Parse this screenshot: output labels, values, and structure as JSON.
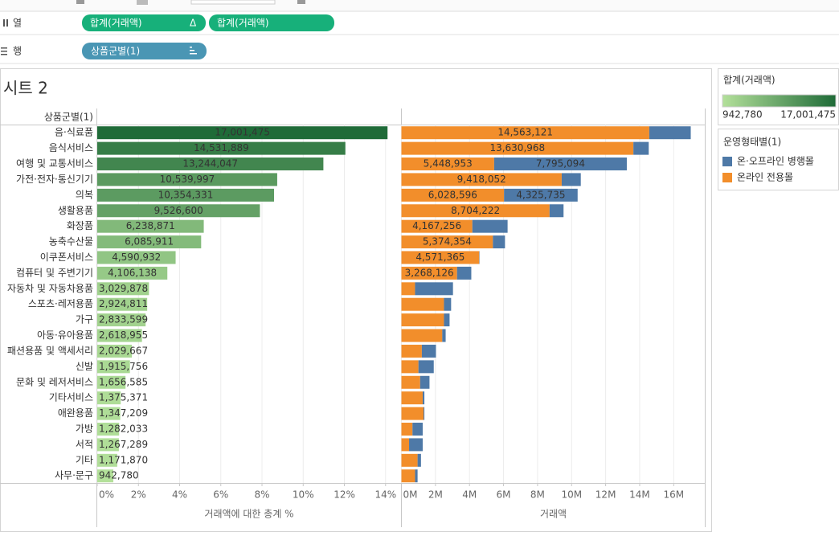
{
  "shelves": {
    "columns": {
      "label": "열",
      "pills": [
        "합계(거래액)",
        "합계(거래액)"
      ],
      "pill_marks": [
        "Δ"
      ]
    },
    "rows": {
      "label": "행",
      "pills": [
        "상품군별(1)"
      ]
    }
  },
  "sheet_title": "시트 2",
  "row_header": "상품군별(1)",
  "chart_data": [
    {
      "type": "bar",
      "orientation": "horizontal",
      "x_label": "거래액에 대한 총계 %",
      "categories": [
        "음·식료품",
        "음식서비스",
        "여행 및 교통서비스",
        "가전·전자·통신기기",
        "의복",
        "생활용품",
        "화장품",
        "농축수산물",
        "이쿠폰서비스",
        "컴퓨터 및 주변기기",
        "자동차 및 자동차용품",
        "스포츠·레저용품",
        "가구",
        "아동·유아용품",
        "패션용품 및 액세서리",
        "신발",
        "문화 및 레저서비스",
        "기타서비스",
        "애완용품",
        "가방",
        "서적",
        "기타",
        "사무·문구"
      ],
      "values": [
        17001475,
        14531889,
        13244047,
        10539997,
        10354331,
        9526600,
        6238871,
        6085911,
        4590932,
        4106138,
        3029878,
        2924811,
        2833599,
        2618955,
        2029667,
        1915756,
        1656585,
        1375371,
        1347209,
        1282033,
        1267289,
        1171870,
        942780
      ],
      "value_labels": [
        "17,001,475",
        "14,531,889",
        "13,244,047",
        "10,539,997",
        "10,354,331",
        "9,526,600",
        "6,238,871",
        "6,085,911",
        "4,590,932",
        "4,106,138",
        "3,029,878",
        "2,924,811",
        "2,833,599",
        "2,618,955",
        "2,029,667",
        "1,915,756",
        "1,656,585",
        "1,375,371",
        "1,347,209",
        "1,282,033",
        "1,267,289",
        "1,171,870",
        "942,780"
      ],
      "x_scale": "percent_of_total",
      "xlim": [
        0,
        14.75
      ],
      "xticks": [
        {
          "value": 0,
          "label": "0%"
        },
        {
          "value": 2,
          "label": "2%"
        },
        {
          "value": 4,
          "label": "4%"
        },
        {
          "value": 6,
          "label": "6%"
        },
        {
          "value": 8,
          "label": "8%"
        },
        {
          "value": 10,
          "label": "10%"
        },
        {
          "value": 12,
          "label": "12%"
        },
        {
          "value": 14,
          "label": "14%"
        }
      ],
      "grid": true,
      "color_scale": {
        "title": "합계(거래액)",
        "colors": [
          "#b3e09a",
          "#1f6b38"
        ],
        "range": [
          {
            "value": 942780,
            "label": "942,780"
          },
          {
            "value": 17001475,
            "label": "17,001,475"
          }
        ]
      }
    },
    {
      "type": "stacked_bar",
      "orientation": "horizontal",
      "x_label": "거래액",
      "legend_title": "운영형태별(1)",
      "series": [
        {
          "name": "온·오프라인 병행몰",
          "color": "#4e79a7",
          "values": [
            2438354,
            900921,
            7795094,
            1121945,
            4325735,
            822378,
            2071615,
            711557,
            19567,
            838012,
            2230000,
            420000,
            330000,
            200000,
            830000,
            900000,
            550000,
            100000,
            50000,
            600000,
            800000,
            200000,
            150000
          ],
          "value_labels": [
            null,
            null,
            "7,795,094",
            null,
            "4,325,735",
            null,
            null,
            null,
            null,
            null,
            null,
            null,
            null,
            null,
            null,
            null,
            null,
            null,
            null,
            null,
            null,
            null,
            null
          ]
        },
        {
          "name": "온라인 전용몰",
          "color": "#f28e2b",
          "values": [
            14563121,
            13630968,
            5448953,
            9418052,
            6028596,
            8704222,
            4167256,
            5374354,
            4571365,
            3268126,
            800000,
            2500000,
            2500000,
            2400000,
            1200000,
            1000000,
            1100000,
            1250000,
            1300000,
            650000,
            450000,
            950000,
            800000
          ],
          "value_labels": [
            "14,563,121",
            "13,630,968",
            "5,448,953",
            "9,418,052",
            "6,028,596",
            "8,704,222",
            "4,167,256",
            "5,374,354",
            "4,571,365",
            "3,268,126",
            null,
            null,
            null,
            null,
            null,
            null,
            null,
            null,
            null,
            null,
            null,
            null,
            null
          ]
        }
      ],
      "xlim": [
        0,
        17850000
      ],
      "xticks": [
        {
          "value": 0,
          "label": "0M"
        },
        {
          "value": 2000000,
          "label": "2M"
        },
        {
          "value": 4000000,
          "label": "4M"
        },
        {
          "value": 6000000,
          "label": "6M"
        },
        {
          "value": 8000000,
          "label": "8M"
        },
        {
          "value": 10000000,
          "label": "10M"
        },
        {
          "value": 12000000,
          "label": "12M"
        },
        {
          "value": 14000000,
          "label": "14M"
        },
        {
          "value": 16000000,
          "label": "16M"
        }
      ],
      "grid": true
    }
  ]
}
